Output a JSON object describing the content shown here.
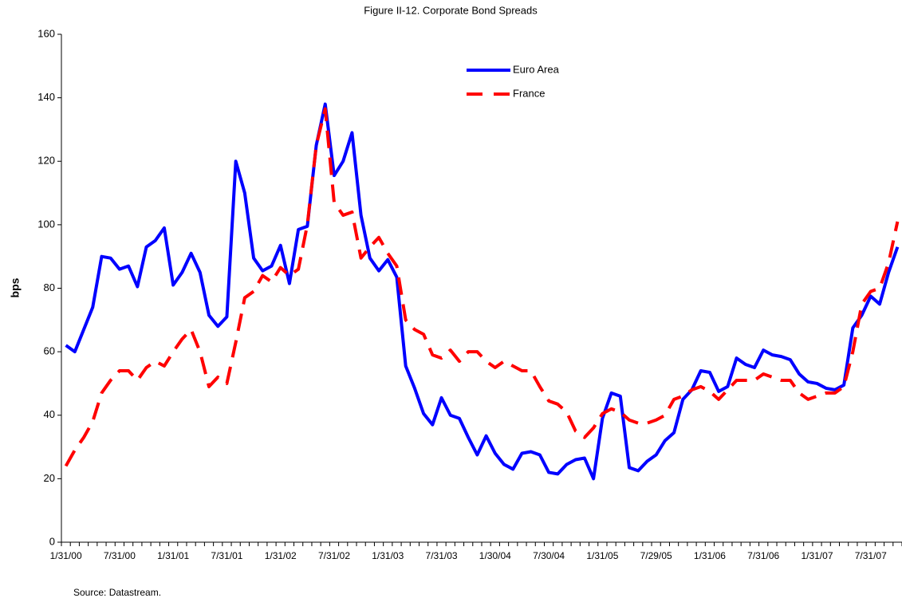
{
  "chart_data": {
    "type": "line",
    "title": "Figure II-12. Corporate Bond Spreads",
    "ylabel": "bps",
    "source": "Source: Datastream.",
    "categories": [
      "1/31/00",
      null,
      null,
      null,
      null,
      null,
      "7/31/00",
      null,
      null,
      null,
      null,
      null,
      "1/31/01",
      null,
      null,
      null,
      null,
      null,
      "7/31/01",
      null,
      null,
      null,
      null,
      null,
      "1/31/02",
      null,
      null,
      null,
      null,
      null,
      "7/31/02",
      null,
      null,
      null,
      null,
      null,
      "1/31/03",
      null,
      null,
      null,
      null,
      null,
      "7/31/03",
      null,
      null,
      null,
      null,
      null,
      "1/30/04",
      null,
      null,
      null,
      null,
      null,
      "7/30/04",
      null,
      null,
      null,
      null,
      null,
      "1/31/05",
      null,
      null,
      null,
      null,
      null,
      "7/29/05",
      null,
      null,
      null,
      null,
      null,
      "1/31/06",
      null,
      null,
      null,
      null,
      null,
      "7/31/06",
      null,
      null,
      null,
      null,
      null,
      "1/31/07",
      null,
      null,
      null,
      null,
      null,
      "7/31/07",
      null,
      null,
      null
    ],
    "series": [
      {
        "name": "Euro Area",
        "color": "#0000ff",
        "linestyle": "solid",
        "values": [
          62,
          60,
          67,
          74,
          90,
          89.5,
          86,
          87,
          80.5,
          93,
          95,
          99,
          81,
          85,
          91,
          85,
          71.5,
          68,
          71,
          120,
          110,
          89.5,
          85.5,
          87,
          93.5,
          81.5,
          98.5,
          99.5,
          125,
          138,
          115.5,
          120,
          129,
          103,
          89.5,
          85.5,
          89,
          83.5,
          55.5,
          48.5,
          40.5,
          37,
          45.5,
          40,
          39,
          33,
          27.5,
          33.5,
          28,
          24.5,
          23,
          28,
          28.5,
          27.5,
          22,
          21.5,
          24.5,
          26,
          26.5,
          20,
          39,
          47,
          46,
          23.5,
          22.5,
          25.5,
          27.5,
          32,
          34.5,
          45,
          48,
          54,
          53.5,
          47.5,
          49,
          58,
          56,
          55,
          60.5,
          59,
          58.5,
          57.5,
          53,
          50.5,
          50,
          48.5,
          48,
          49.5,
          67.5,
          71.5,
          77.5,
          75,
          85,
          93
        ]
      },
      {
        "name": "France",
        "color": "#ff0000",
        "linestyle": "dashed",
        "values": [
          24,
          29,
          33,
          38,
          47,
          51,
          54,
          54,
          51,
          55,
          57,
          55.5,
          60,
          64,
          67,
          60,
          49,
          52,
          50,
          63,
          77,
          79,
          84,
          82,
          86.5,
          84,
          86,
          100,
          125,
          136.5,
          107,
          103,
          104,
          89.5,
          93,
          96,
          91,
          87,
          70,
          67,
          65.5,
          59,
          58,
          60.5,
          57,
          60,
          60,
          57,
          55,
          57,
          55.5,
          54,
          54,
          49,
          44.5,
          43.5,
          41,
          35,
          33,
          36,
          40.5,
          42,
          41,
          38.5,
          37.5,
          37.5,
          38.5,
          40,
          45,
          46,
          48,
          49,
          47.5,
          45,
          48,
          51,
          51,
          51,
          53,
          52,
          51,
          51,
          47,
          45,
          46,
          47,
          47,
          49,
          60,
          75,
          79,
          80,
          88,
          101
        ]
      }
    ],
    "ylim": [
      0,
      160
    ],
    "yticks": [
      0,
      20,
      40,
      60,
      80,
      100,
      120,
      140,
      160
    ],
    "grid": false,
    "legend": "upper center"
  }
}
